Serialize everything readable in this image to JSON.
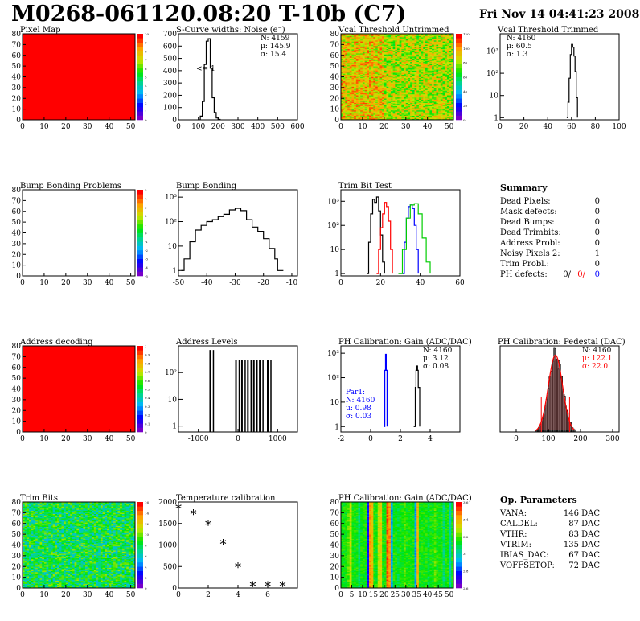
{
  "header": {
    "title": "M0268-061120.08:20 T-10b (C7)",
    "date": "Fri Nov 14 04:41:23 2008"
  },
  "panels": [
    {
      "id": "pixel_map",
      "title": "Pixel Map",
      "kind": "map",
      "fill": "solid",
      "color": "#ff0000",
      "xlim": [
        0,
        52
      ],
      "ylim": [
        0,
        80
      ],
      "xticks": [
        0,
        10,
        20,
        30,
        40,
        50
      ],
      "yticks": [
        0,
        10,
        20,
        30,
        40,
        50,
        60,
        70,
        80
      ],
      "zticks": [
        "0",
        "1",
        "2",
        "3",
        "4",
        "5",
        "6",
        "7",
        "8",
        "9",
        "10"
      ]
    },
    {
      "id": "scurve",
      "title": "S-Curve widths: Noise (e⁻)",
      "kind": "line",
      "ylog": false,
      "xlim": [
        0,
        600
      ],
      "ylim": [
        0,
        700
      ],
      "xticks": [
        0,
        100,
        200,
        300,
        400,
        500,
        600
      ],
      "yticks": [
        0,
        100,
        200,
        300,
        400,
        500,
        600,
        700
      ],
      "stats": [
        "N: 4159",
        "μ: 145.9",
        "σ: 15.4"
      ],
      "annotation": "<= 1",
      "series": [
        {
          "color": "#000",
          "x": [
            100,
            110,
            120,
            130,
            140,
            150,
            160,
            170,
            180,
            190,
            200,
            210
          ],
          "y": [
            0,
            30,
            150,
            450,
            640,
            660,
            420,
            180,
            60,
            15,
            3,
            0
          ]
        }
      ]
    },
    {
      "id": "vcal_untrimmed",
      "title": "Vcal Threshold Untrimmed",
      "kind": "map",
      "fill": "noise_warm",
      "xlim": [
        0,
        52
      ],
      "ylim": [
        0,
        80
      ],
      "xticks": [
        0,
        10,
        20,
        30,
        40,
        50
      ],
      "yticks": [
        0,
        10,
        20,
        30,
        40,
        50,
        60,
        70,
        80
      ],
      "zticks": [
        "0",
        "20",
        "40",
        "60",
        "80",
        "100",
        "120"
      ]
    },
    {
      "id": "vcal_trimmed",
      "title": "Vcal Threshold Trimmed",
      "kind": "line",
      "ylog": true,
      "xlim": [
        0,
        100
      ],
      "ylim": [
        0.8,
        6000
      ],
      "xticks": [
        0,
        20,
        40,
        60,
        80,
        100
      ],
      "ytick_labels": [
        "1",
        "10",
        "10²",
        "10³"
      ],
      "stats": [
        "N: 4160",
        "μ: 60.5",
        "σ:  1.3"
      ],
      "series": [
        {
          "color": "#000",
          "x": [
            56,
            57,
            58,
            59,
            60,
            61,
            62,
            63,
            64,
            65
          ],
          "y": [
            1,
            5,
            60,
            700,
            2000,
            1500,
            600,
            120,
            8,
            1
          ]
        }
      ]
    },
    {
      "id": "bump_problems",
      "title": "Bump Bonding Problems",
      "kind": "map",
      "fill": "empty",
      "xlim": [
        0,
        52
      ],
      "ylim": [
        0,
        80
      ],
      "xticks": [
        0,
        10,
        20,
        30,
        40,
        50
      ],
      "yticks": [
        0,
        10,
        20,
        30,
        40,
        50,
        60,
        70,
        80
      ],
      "zticks": [
        "-5",
        "-4",
        "-3",
        "-2",
        "-1",
        "0",
        "1",
        "2",
        "3",
        "4",
        "5"
      ]
    },
    {
      "id": "bump_bonding",
      "title": "Bump Bonding",
      "kind": "line",
      "ylog": true,
      "xlim": [
        -50,
        -8
      ],
      "ylim": [
        0.6,
        2000
      ],
      "xticks": [
        -50,
        -40,
        -30,
        -20,
        -10
      ],
      "ytick_labels": [
        "1",
        "10",
        "10²",
        "10³"
      ],
      "series": [
        {
          "color": "#000",
          "x": [
            -49,
            -48,
            -46,
            -44,
            -42,
            -40,
            -38,
            -36,
            -34,
            -32,
            -30,
            -28,
            -26,
            -24,
            -22,
            -20,
            -18,
            -16,
            -15,
            -13
          ],
          "y": [
            1,
            3,
            15,
            45,
            70,
            100,
            120,
            160,
            200,
            300,
            350,
            280,
            120,
            60,
            40,
            20,
            8,
            3,
            1,
            1
          ]
        }
      ]
    },
    {
      "id": "trim_bit_test",
      "title": "Trim Bit Test",
      "kind": "line",
      "ylog": true,
      "xlim": [
        0,
        60
      ],
      "ylim": [
        0.8,
        3000
      ],
      "xticks": [
        0,
        20,
        40,
        60
      ],
      "ytick_labels": [
        "1",
        "10",
        "10²",
        "10³"
      ],
      "series": [
        {
          "color": "#000",
          "x": [
            13,
            14,
            15,
            16,
            17,
            18,
            19,
            20,
            21,
            22
          ],
          "y": [
            1,
            20,
            300,
            1200,
            900,
            1500,
            400,
            40,
            3,
            1
          ]
        },
        {
          "color": "#ff0000",
          "x": [
            18,
            19,
            20,
            21,
            22,
            23,
            24,
            25,
            26
          ],
          "y": [
            1,
            10,
            80,
            300,
            900,
            600,
            150,
            10,
            1
          ]
        },
        {
          "color": "#0000ff",
          "x": [
            31,
            32,
            33,
            34,
            35,
            36,
            37,
            38,
            39
          ],
          "y": [
            1,
            20,
            200,
            600,
            700,
            500,
            100,
            10,
            1
          ]
        },
        {
          "color": "#00cc00",
          "x": [
            29,
            31,
            33,
            35,
            37,
            39,
            41,
            43,
            45
          ],
          "y": [
            1,
            10,
            200,
            700,
            800,
            300,
            30,
            3,
            1
          ]
        }
      ]
    },
    {
      "id": "summary",
      "title": "Summary",
      "kind": "table",
      "rows": [
        [
          "Dead Pixels:",
          "0"
        ],
        [
          "Mask defects:",
          "0"
        ],
        [
          "Dead Bumps:",
          "0"
        ],
        [
          "Dead Trimbits:",
          "0"
        ],
        [
          "Address Probl:",
          "0"
        ],
        [
          "Noisy Pixels 2:",
          "1"
        ],
        [
          "Trim Probl.:",
          "0"
        ]
      ],
      "ph_label": "PH defects:",
      "ph_values": [
        "0/",
        "0/",
        "0"
      ],
      "ph_colors": [
        "#000000",
        "#ff0000",
        "#0000ff"
      ]
    },
    {
      "id": "address_decoding",
      "title": "Address decoding",
      "kind": "map",
      "fill": "solid",
      "color": "#ff0000",
      "xlim": [
        0,
        52
      ],
      "ylim": [
        0,
        80
      ],
      "xticks": [
        0,
        10,
        20,
        30,
        40,
        50
      ],
      "yticks": [
        0,
        10,
        20,
        30,
        40,
        50,
        60,
        70,
        80
      ],
      "zticks": [
        "0",
        "0.1",
        "0.2",
        "0.3",
        "0.4",
        "0.5",
        "0.6",
        "0.7",
        "0.8",
        "0.9",
        "1"
      ]
    },
    {
      "id": "address_levels",
      "title": "Address Levels",
      "kind": "line",
      "ylog": true,
      "xlim": [
        -1500,
        1500
      ],
      "ylim": [
        0.6,
        1000
      ],
      "xticks": [
        -1000,
        0,
        1000
      ],
      "ytick_labels": [
        "1",
        "10",
        "10²"
      ],
      "series": [
        {
          "color": "#000",
          "x": [
            -700,
            -50,
            100,
            250,
            400,
            550,
            750
          ],
          "y": [
            700,
            300,
            300,
            300,
            300,
            300,
            300
          ]
        }
      ]
    },
    {
      "id": "ph_gain",
      "title": "PH Calibration: Gain (ADC/DAC)",
      "kind": "line",
      "ylog": true,
      "xlim": [
        -2,
        6
      ],
      "ylim": [
        0.6,
        2000
      ],
      "xticks": [
        -2,
        0,
        2,
        4
      ],
      "ytick_labels": [
        "1",
        "10",
        "10²",
        "10³"
      ],
      "stats": [
        "N: 4160",
        "μ: 3.12",
        "σ: 0.08"
      ],
      "par_stats": [
        "Par1:",
        "N: 4160",
        "μ: 0.98",
        "σ: 0.03"
      ],
      "series": [
        {
          "color": "#000",
          "x": [
            2.9,
            3.0,
            3.05,
            3.1,
            3.15,
            3.2,
            3.3
          ],
          "y": [
            1,
            40,
            200,
            300,
            200,
            40,
            1
          ]
        },
        {
          "color": "#0000ff",
          "x": [
            0.9,
            0.95,
            1.0,
            1.05,
            1.1
          ],
          "y": [
            1,
            200,
            900,
            200,
            1
          ]
        }
      ]
    },
    {
      "id": "ph_pedestal",
      "title": "PH Calibration: Pedestal (DAC)",
      "kind": "hist",
      "xlim": [
        -50,
        320
      ],
      "ylim": [
        0,
        140
      ],
      "xticks": [
        0,
        100,
        200,
        300
      ],
      "yticks": [],
      "stats": [
        "N: 4160",
        "μ: 122.1",
        "σ: 22.0"
      ],
      "stats_colors": [
        "#000",
        "#ff0000",
        "#ff0000"
      ],
      "gauss": {
        "mu": 122.1,
        "sigma": 22.0,
        "peak": 125,
        "range": [
          60,
          180
        ]
      },
      "fit_lines": [
        78,
        166
      ]
    },
    {
      "id": "trim_bits",
      "title": "Trim Bits",
      "kind": "map",
      "fill": "noise_green",
      "xlim": [
        0,
        52
      ],
      "ylim": [
        0,
        80
      ],
      "xticks": [
        0,
        10,
        20,
        30,
        40,
        50
      ],
      "yticks": [
        0,
        10,
        20,
        30,
        40,
        50,
        60,
        70,
        80
      ],
      "zticks": [
        "0",
        "2",
        "4",
        "6",
        "8",
        "10",
        "12",
        "14",
        "16"
      ]
    },
    {
      "id": "temperature",
      "title": "Temperature calibration",
      "kind": "points",
      "xlim": [
        0,
        8
      ],
      "ylim": [
        0,
        2000
      ],
      "xticks": [
        0,
        2,
        4,
        6
      ],
      "yticks": [
        0,
        500,
        1000,
        1500,
        2000
      ],
      "series": [
        {
          "color": "#000",
          "x": [
            0,
            1,
            2,
            3,
            4,
            5,
            6,
            7
          ],
          "y": [
            1830,
            1700,
            1450,
            1010,
            470,
            30,
            30,
            30
          ]
        }
      ]
    },
    {
      "id": "ph_gain_map",
      "title": "PH Calibration: Gain (ADC/DAC)",
      "kind": "map",
      "fill": "stripes",
      "xlim": [
        0,
        52
      ],
      "ylim": [
        0,
        80
      ],
      "xticks": [
        0,
        5,
        10,
        15,
        20,
        25,
        30,
        35,
        40,
        45,
        50
      ],
      "yticks": [
        0,
        10,
        20,
        30,
        40,
        50,
        60,
        70,
        80
      ],
      "zticks": [
        "2.6",
        "2.8",
        "3",
        "3.2",
        "3.4",
        "3.6"
      ]
    },
    {
      "id": "op_params",
      "title": "Op. Parameters",
      "kind": "table",
      "rows": [
        [
          "VANA:",
          "146 DAC"
        ],
        [
          "CALDEL:",
          "87 DAC"
        ],
        [
          "VTHR:",
          "83 DAC"
        ],
        [
          "VTRIM:",
          "135 DAC"
        ],
        [
          "IBIAS_DAC:",
          "67 DAC"
        ],
        [
          "VOFFSETOP:",
          "72 DAC"
        ]
      ]
    }
  ]
}
